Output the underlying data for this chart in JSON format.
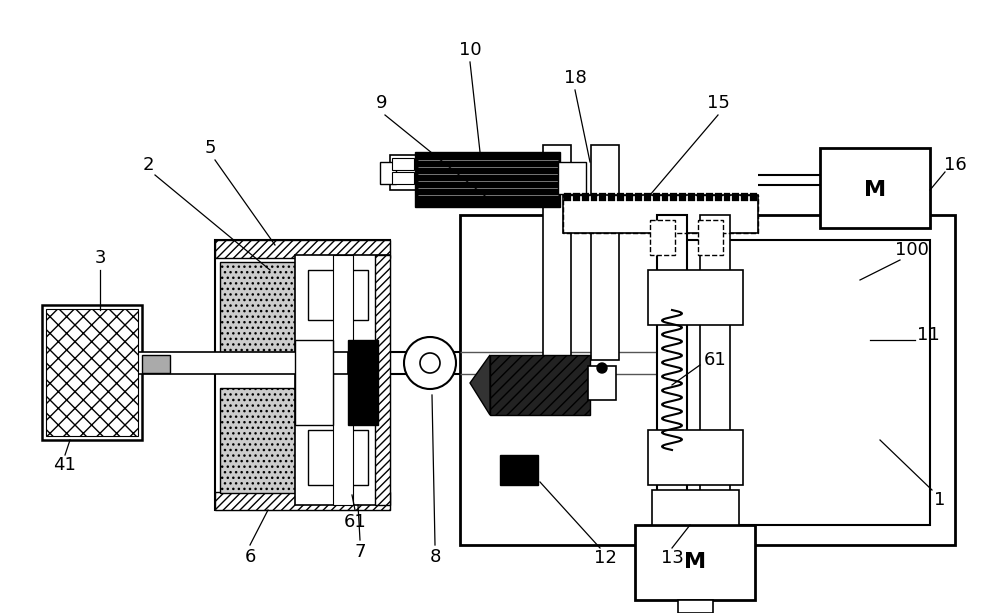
{
  "bg_color": "#ffffff",
  "fig_width": 10.0,
  "fig_height": 6.13,
  "dpi": 100
}
